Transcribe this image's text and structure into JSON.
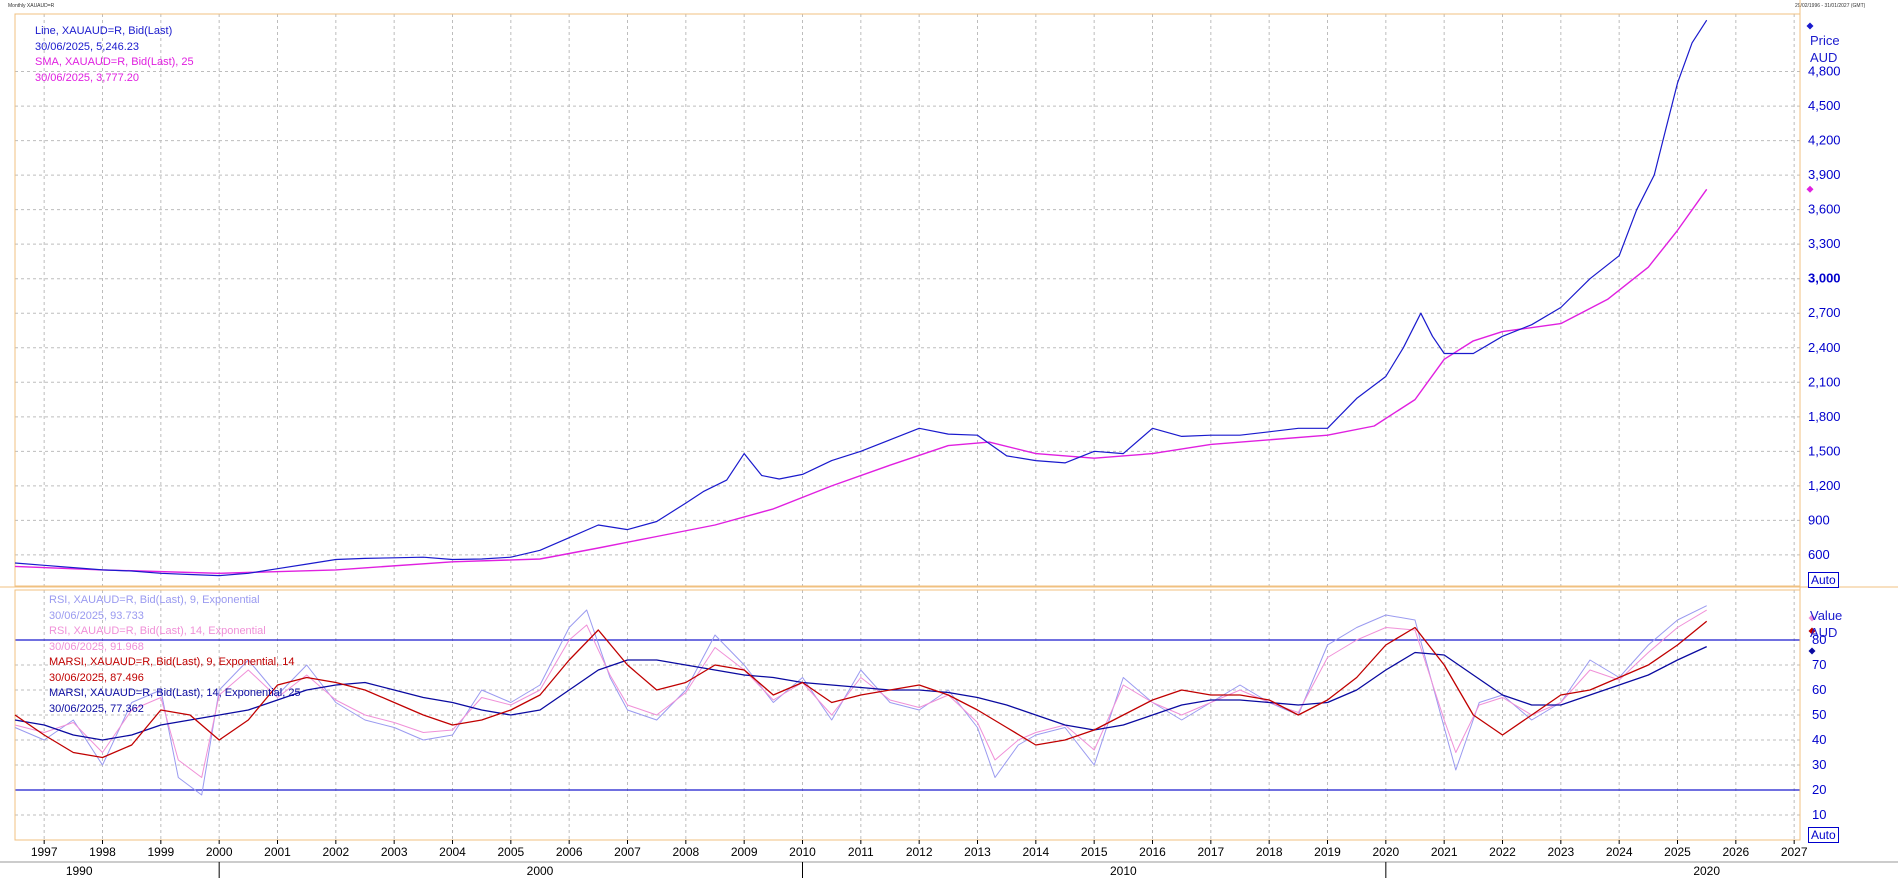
{
  "header": {
    "left": "Monthly XAUAUD=R",
    "right": "29/02/1996 - 31/01/2027 (GMT)"
  },
  "legend_top": [
    {
      "text": "Line, XAUAUD=R, Bid(Last)",
      "color": "#1a1acd"
    },
    {
      "text": "30/06/2025, 5,246.23",
      "color": "#1a1acd"
    },
    {
      "text": "SMA, XAUAUD=R, Bid(Last),  25",
      "color": "#e020e0"
    },
    {
      "text": "30/06/2025, 3,777.20",
      "color": "#e020e0"
    }
  ],
  "legend_bottom": [
    {
      "text": "RSI, XAUAUD=R, Bid(Last),  9, Exponential",
      "color": "#9a9af0"
    },
    {
      "text": "30/06/2025, 93.733",
      "color": "#9a9af0"
    },
    {
      "text": "RSI, XAUAUD=R, Bid(Last),  14, Exponential",
      "color": "#f090d8"
    },
    {
      "text": "30/06/2025, 91.968",
      "color": "#f090d8"
    },
    {
      "text": "MARSI, XAUAUD=R, Bid(Last),  9, Exponential, 14",
      "color": "#c00000"
    },
    {
      "text": "30/06/2025, 87.496",
      "color": "#c00000"
    },
    {
      "text": "MARSI, XAUAUD=R, Bid(Last),  14, Exponential, 25",
      "color": "#0a0aa0"
    },
    {
      "text": "30/06/2025, 77.362",
      "color": "#0a0aa0"
    }
  ],
  "top_axis": {
    "title_line1": "Price",
    "title_line2": "AUD",
    "auto_label": "Auto"
  },
  "bottom_axis": {
    "title_line1": "Value",
    "title_line2": "AUD",
    "auto_label": "Auto"
  },
  "colors": {
    "price": "#1a1acd",
    "sma": "#e020e0",
    "rsi9": "#9a9af0",
    "rsi14": "#f090d8",
    "marsi9": "#c00000",
    "marsi14": "#0a0aa0",
    "border": "#f0c080",
    "grid": "#bdbdbd",
    "axis_text": "#0000cc"
  },
  "chart_data": [
    {
      "type": "line",
      "title": "",
      "ylabel": "Price AUD",
      "x_range": [
        1996.5,
        2027.1
      ],
      "ylim": [
        330,
        5300
      ],
      "y_ticks": [
        600,
        900,
        1200,
        1500,
        1800,
        2100,
        2400,
        2700,
        3000,
        3300,
        3600,
        3900,
        4200,
        4500,
        4800
      ],
      "x_ticks": [
        "1997",
        "1998",
        "1999",
        "2000",
        "2001",
        "2002",
        "2003",
        "2004",
        "2005",
        "2006",
        "2007",
        "2008",
        "2009",
        "2010",
        "2011",
        "2012",
        "2013",
        "2014",
        "2015",
        "2016",
        "2017",
        "2018",
        "2019",
        "2020",
        "2021",
        "2022",
        "2023",
        "2024",
        "2025",
        "2026",
        "2027"
      ],
      "decade_labels": [
        "1990",
        "2000",
        "2010",
        "2020"
      ],
      "grid": true,
      "series": [
        {
          "name": "Line, XAUAUD=R, Bid(Last)",
          "x": [
            1996.5,
            1997,
            1997.5,
            1998,
            1998.5,
            1999,
            1999.5,
            2000,
            2000.5,
            2001,
            2001.5,
            2002,
            2002.5,
            2003,
            2003.5,
            2004,
            2004.5,
            2005,
            2005.5,
            2006,
            2006.5,
            2007,
            2007.5,
            2008,
            2008.3,
            2008.7,
            2009,
            2009.3,
            2009.6,
            2010,
            2010.5,
            2011,
            2011.5,
            2012,
            2012.5,
            2013,
            2013.5,
            2014,
            2014.5,
            2015,
            2015.5,
            2016,
            2016.5,
            2017,
            2017.5,
            2018,
            2018.5,
            2019,
            2019.5,
            2020,
            2020.3,
            2020.6,
            2020.8,
            2021,
            2021.5,
            2022,
            2022.5,
            2023,
            2023.5,
            2024,
            2024.3,
            2024.6,
            2024.8,
            2025,
            2025.25,
            2025.5
          ],
          "values": [
            530,
            510,
            490,
            470,
            460,
            440,
            430,
            420,
            440,
            480,
            520,
            560,
            570,
            575,
            580,
            560,
            565,
            580,
            640,
            750,
            860,
            820,
            890,
            1050,
            1150,
            1250,
            1480,
            1290,
            1260,
            1300,
            1420,
            1500,
            1600,
            1700,
            1650,
            1640,
            1460,
            1420,
            1400,
            1500,
            1480,
            1700,
            1630,
            1640,
            1640,
            1670,
            1700,
            1700,
            1960,
            2150,
            2400,
            2700,
            2500,
            2350,
            2350,
            2500,
            2600,
            2750,
            3000,
            3200,
            3600,
            3900,
            4300,
            4700,
            5050,
            5246.23
          ]
        },
        {
          "name": "SMA, XAUAUD=R, Bid(Last),  25",
          "x": [
            1996.5,
            1998,
            2000,
            2002,
            2004,
            2005.5,
            2006.5,
            2007.5,
            2008.5,
            2009.5,
            2010.5,
            2011.5,
            2012.5,
            2013.2,
            2014,
            2015,
            2016,
            2017,
            2018,
            2019,
            2019.8,
            2020.5,
            2021,
            2021.5,
            2022,
            2023,
            2023.8,
            2024.5,
            2025,
            2025.5
          ],
          "values": [
            500,
            470,
            440,
            470,
            540,
            565,
            660,
            760,
            860,
            1000,
            1200,
            1380,
            1550,
            1580,
            1480,
            1440,
            1480,
            1560,
            1600,
            1640,
            1720,
            1950,
            2300,
            2460,
            2540,
            2610,
            2820,
            3100,
            3420,
            3777.2
          ]
        }
      ]
    },
    {
      "type": "line",
      "title": "",
      "ylabel": "Value AUD",
      "x_range": [
        1996.5,
        2027.1
      ],
      "ylim": [
        0,
        100
      ],
      "y_ticks": [
        10,
        20,
        30,
        40,
        50,
        60,
        70,
        80
      ],
      "reference_lines": [
        20,
        80
      ],
      "grid": true,
      "series": [
        {
          "name": "RSI, XAUAUD=R, Bid(Last),  9, Exponential",
          "x": [
            1996.5,
            1997,
            1997.5,
            1998,
            1998.5,
            1999,
            1999.3,
            1999.7,
            2000,
            2000.5,
            2001,
            2001.5,
            2002,
            2002.5,
            2003,
            2003.5,
            2004,
            2004.5,
            2005,
            2005.5,
            2006,
            2006.3,
            2006.7,
            2007,
            2007.5,
            2008,
            2008.5,
            2009,
            2009.5,
            2010,
            2010.5,
            2011,
            2011.5,
            2012,
            2012.5,
            2013,
            2013.3,
            2013.7,
            2014,
            2014.5,
            2015,
            2015.5,
            2016,
            2016.5,
            2017,
            2017.5,
            2018,
            2018.5,
            2019,
            2019.5,
            2020,
            2020.5,
            2021,
            2021.2,
            2021.6,
            2022,
            2022.5,
            2023,
            2023.5,
            2024,
            2024.5,
            2025,
            2025.5
          ],
          "values": [
            45,
            40,
            48,
            30,
            55,
            60,
            25,
            18,
            60,
            72,
            58,
            70,
            55,
            48,
            45,
            40,
            42,
            60,
            55,
            62,
            85,
            92,
            65,
            52,
            48,
            60,
            82,
            70,
            55,
            65,
            48,
            68,
            55,
            52,
            60,
            45,
            25,
            38,
            42,
            45,
            30,
            65,
            55,
            48,
            55,
            62,
            55,
            50,
            78,
            85,
            90,
            88,
            45,
            28,
            55,
            58,
            48,
            55,
            72,
            65,
            78,
            88,
            93.733
          ]
        },
        {
          "name": "RSI, XAUAUD=R, Bid(Last),  14, Exponential",
          "x": [
            1996.5,
            1997,
            1997.5,
            1998,
            1998.5,
            1999,
            1999.3,
            1999.7,
            2000,
            2000.5,
            2001,
            2001.5,
            2002,
            2002.5,
            2003,
            2003.5,
            2004,
            2004.5,
            2005,
            2005.5,
            2006,
            2006.3,
            2006.7,
            2007,
            2007.5,
            2008,
            2008.5,
            2009,
            2009.5,
            2010,
            2010.5,
            2011,
            2011.5,
            2012,
            2012.5,
            2013,
            2013.3,
            2013.7,
            2014,
            2014.5,
            2015,
            2015.5,
            2016,
            2016.5,
            2017,
            2017.5,
            2018,
            2018.5,
            2019,
            2019.5,
            2020,
            2020.5,
            2021,
            2021.2,
            2021.6,
            2022,
            2022.5,
            2023,
            2023.5,
            2024,
            2024.5,
            2025,
            2025.5
          ],
          "values": [
            46,
            43,
            47,
            35,
            52,
            57,
            32,
            25,
            58,
            68,
            57,
            66,
            56,
            50,
            47,
            43,
            44,
            57,
            54,
            60,
            80,
            86,
            66,
            54,
            50,
            59,
            77,
            68,
            56,
            63,
            50,
            65,
            56,
            53,
            58,
            47,
            32,
            40,
            43,
            46,
            36,
            62,
            55,
            50,
            55,
            60,
            55,
            51,
            73,
            80,
            85,
            84,
            48,
            35,
            54,
            57,
            50,
            55,
            68,
            64,
            75,
            85,
            91.968
          ]
        },
        {
          "name": "MARSI, XAUAUD=R, Bid(Last),  9, Exponential, 14",
          "x": [
            1996.5,
            1997,
            1997.5,
            1998,
            1998.5,
            1999,
            1999.5,
            2000,
            2000.5,
            2001,
            2001.5,
            2002,
            2002.5,
            2003,
            2003.5,
            2004,
            2004.5,
            2005,
            2005.5,
            2006,
            2006.5,
            2007,
            2007.5,
            2008,
            2008.5,
            2009,
            2009.5,
            2010,
            2010.5,
            2011,
            2011.5,
            2012,
            2012.5,
            2013,
            2013.5,
            2014,
            2014.5,
            2015,
            2015.5,
            2016,
            2016.5,
            2017,
            2017.5,
            2018,
            2018.5,
            2019,
            2019.5,
            2020,
            2020.5,
            2021,
            2021.5,
            2022,
            2022.5,
            2023,
            2023.5,
            2024,
            2024.5,
            2025,
            2025.5
          ],
          "values": [
            50,
            42,
            35,
            33,
            38,
            52,
            50,
            40,
            48,
            62,
            65,
            63,
            60,
            55,
            50,
            46,
            48,
            52,
            58,
            72,
            84,
            70,
            60,
            63,
            70,
            68,
            58,
            63,
            55,
            58,
            60,
            62,
            58,
            52,
            45,
            38,
            40,
            44,
            50,
            56,
            60,
            58,
            58,
            56,
            50,
            56,
            65,
            78,
            85,
            70,
            50,
            42,
            50,
            58,
            60,
            65,
            70,
            78,
            87.496
          ]
        },
        {
          "name": "MARSI, XAUAUD=R, Bid(Last),  14, Exponential, 25",
          "x": [
            1996.5,
            1997,
            1997.5,
            1998,
            1998.5,
            1999,
            1999.5,
            2000,
            2000.5,
            2001,
            2001.5,
            2002,
            2002.5,
            2003,
            2003.5,
            2004,
            2004.5,
            2005,
            2005.5,
            2006,
            2006.5,
            2007,
            2007.5,
            2008,
            2008.5,
            2009,
            2009.5,
            2010,
            2010.5,
            2011,
            2011.5,
            2012,
            2012.5,
            2013,
            2013.5,
            2014,
            2014.5,
            2015,
            2015.5,
            2016,
            2016.5,
            2017,
            2017.5,
            2018,
            2018.5,
            2019,
            2019.5,
            2020,
            2020.5,
            2021,
            2021.5,
            2022,
            2022.5,
            2023,
            2023.5,
            2024,
            2024.5,
            2025,
            2025.5
          ],
          "values": [
            48,
            46,
            42,
            40,
            42,
            46,
            48,
            50,
            52,
            56,
            60,
            62,
            63,
            60,
            57,
            55,
            52,
            50,
            52,
            60,
            68,
            72,
            72,
            70,
            68,
            66,
            65,
            63,
            62,
            61,
            60,
            60,
            59,
            57,
            54,
            50,
            46,
            44,
            46,
            50,
            54,
            56,
            56,
            55,
            54,
            55,
            60,
            68,
            75,
            74,
            66,
            58,
            54,
            54,
            58,
            62,
            66,
            72,
            77.362
          ]
        }
      ]
    }
  ]
}
